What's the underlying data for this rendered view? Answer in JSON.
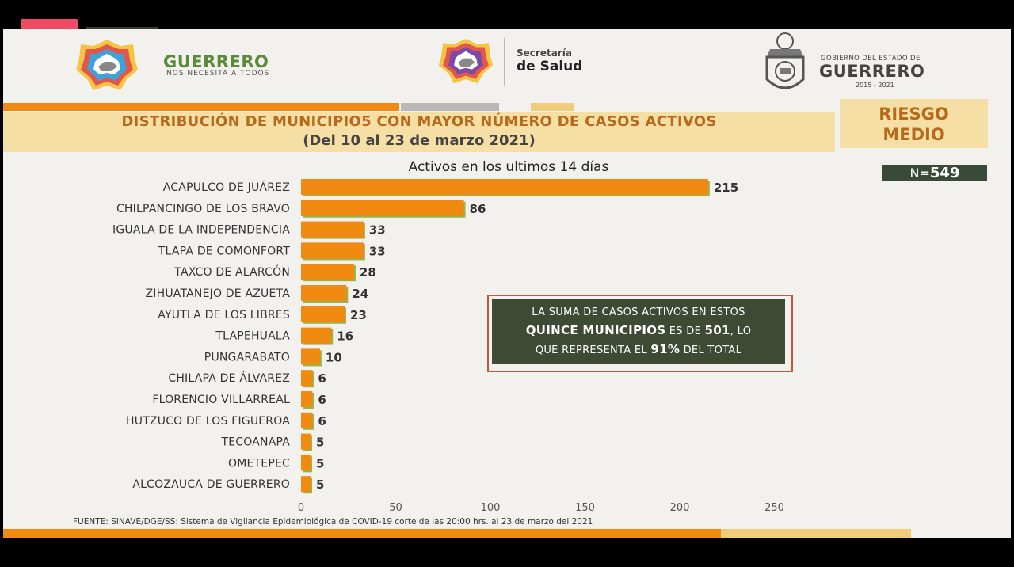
{
  "header": {
    "guerrero_brand": "GUERRERO",
    "guerrero_slogan": "NOS NECESITA A TODOS",
    "secretaria_line1": "Secretaría",
    "secretaria_line2": "de Salud",
    "gobierno_line1": "GOBIERNO DEL ESTADO DE",
    "gobierno_line2": "GUERRERO",
    "gobierno_years": "2015 - 2021"
  },
  "title_line1": "DISTRIBUCIÓN DE MUNICIPIO5 CON MAYOR NÚMERO DE  CASOS ACTIVOS",
  "title_line2": "(Del 10 al 23 de marzo 2021)",
  "risk": {
    "line1": "RIESGO",
    "line2": "MEDIO"
  },
  "n_label": "N=",
  "n_value": "549",
  "callout": {
    "line1": "LA SUMA DE CASOS ACTIVOS EN ESTOS",
    "line2_bold": "QUINCE MUNICIPIOS",
    "line2_mid": " ES DE ",
    "line2_value": "501",
    "line2_end": ", LO",
    "line3_start": "QUE REPRESENTA EL ",
    "line3_pct": "91%",
    "line3_end": " DEL TOTAL"
  },
  "source": "FUENTE: SINAVE/DGE/SS: Sistema de Vigilancia Epidemiológica de COVID-19 corte de las 20:00 hrs. al 23 de marzo del 2021",
  "colors": {
    "bar": "#f08a10",
    "accent": "#b86a1c",
    "dark_box": "#3e4a34"
  },
  "chart_data": {
    "type": "bar",
    "orientation": "horizontal",
    "title": "Activos en los ultimos 14 días",
    "categories": [
      "ACAPULCO DE JUÁREZ",
      "CHILPANCINGO DE LOS BRAVO",
      "IGUALA DE LA INDEPENDENCIA",
      "TLAPA DE COMONFORT",
      "TAXCO DE ALARCÓN",
      "ZIHUATANEJO DE AZUETA",
      "AYUTLA DE LOS LIBRES",
      "TLAPEHUALA",
      "PUNGARABATO",
      "CHILAPA DE ÁLVAREZ",
      "FLORENCIO VILLARREAL",
      "HUTZUCO DE LOS FIGUEROA",
      "TECOANAPA",
      "OMETEPEC",
      "ALCOZAUCA DE GUERRERO"
    ],
    "values": [
      215,
      86,
      33,
      33,
      28,
      24,
      23,
      16,
      10,
      6,
      6,
      6,
      5,
      5,
      5
    ],
    "xlim": [
      0,
      250
    ],
    "xticks": [
      0,
      50,
      100,
      150,
      200,
      250
    ],
    "grid": false,
    "legend": "none",
    "xlabel": "",
    "ylabel": ""
  }
}
